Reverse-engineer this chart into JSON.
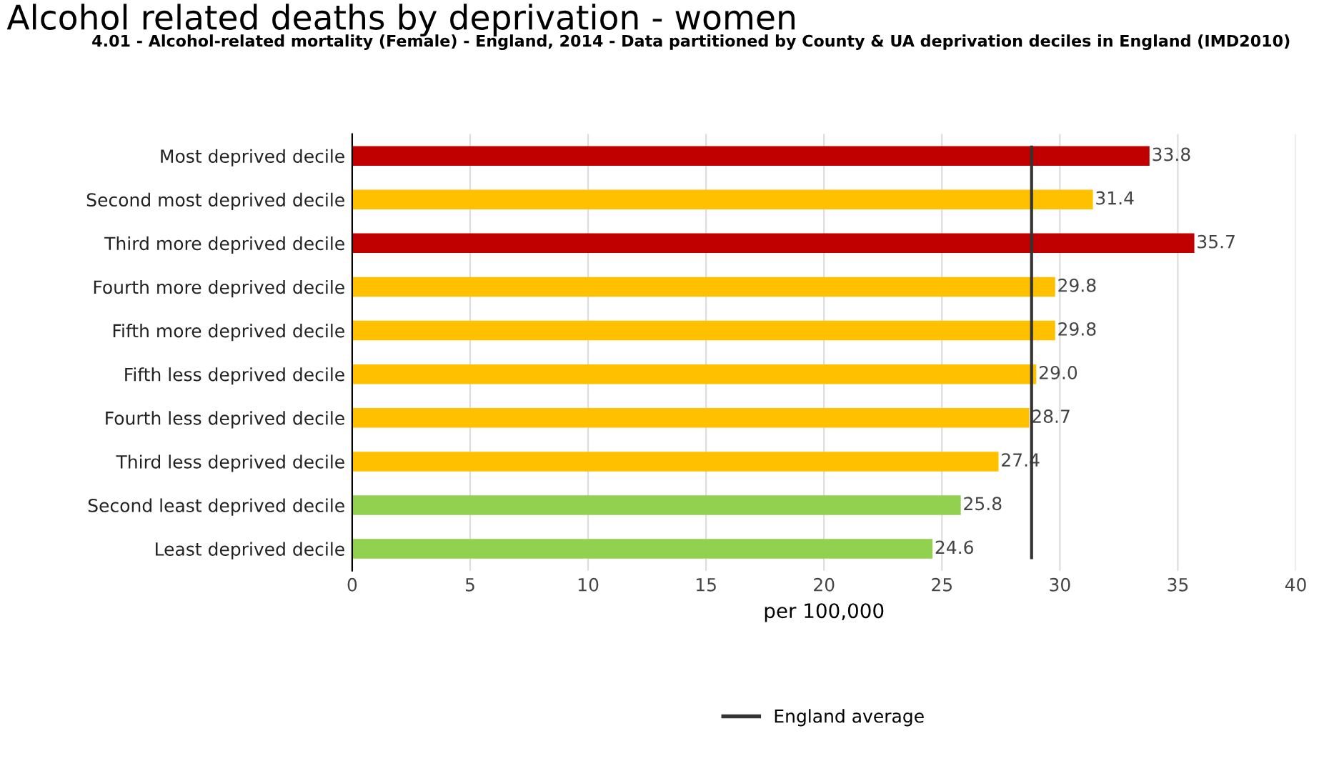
{
  "chart_data": {
    "type": "bar",
    "orientation": "horizontal",
    "title": "Alcohol related deaths by deprivation - women",
    "subtitle": "4.01 - Alcohol-related mortality (Female) - England, 2014 - Data partitioned by County & UA deprivation deciles in England (IMD2010)",
    "xlabel": "per 100,000",
    "categories": [
      "Most deprived decile",
      "Second most deprived decile",
      "Third more deprived decile",
      "Fourth more deprived decile",
      "Fifth more deprived decile",
      "Fifth less deprived decile",
      "Fourth less deprived decile",
      "Third less deprived decile",
      "Second least deprived decile",
      "Least deprived decile"
    ],
    "values": [
      33.8,
      31.4,
      35.7,
      29.8,
      29.8,
      29.0,
      28.7,
      27.4,
      25.8,
      24.6
    ],
    "value_labels": [
      "33.8",
      "31.4",
      "35.7",
      "29.8",
      "29.8",
      "29.0",
      "28.7",
      "27.4",
      "25.8",
      "24.6"
    ],
    "colors": [
      "#c00000",
      "#ffc000",
      "#c00000",
      "#ffc000",
      "#ffc000",
      "#ffc000",
      "#ffc000",
      "#ffc000",
      "#92d050",
      "#92d050"
    ],
    "xlim": [
      0,
      40
    ],
    "xticks": [
      0,
      5,
      10,
      15,
      20,
      25,
      30,
      35,
      40
    ],
    "grid": "x",
    "legend": "bottom",
    "ref_lines": [
      {
        "axis": "x",
        "value": 28.8,
        "label": "England average",
        "color": "#333333"
      }
    ]
  }
}
